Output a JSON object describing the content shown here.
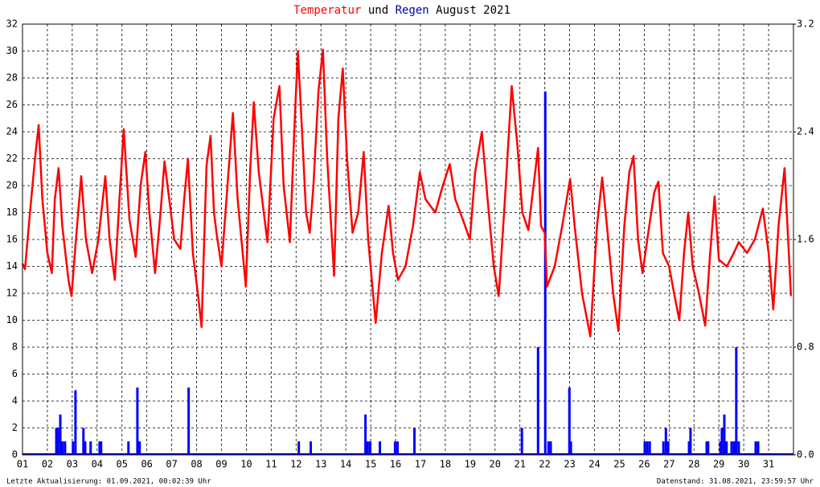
{
  "chart_data": {
    "type": "line",
    "title": "August 2021",
    "title_join": "und",
    "footer_left": "Letzte Aktualisierung: 01.09.2021, 00:02:39 Uhr",
    "footer_right": "Datenstand: 31.08.2021, 23:59:57 Uhr",
    "grid": true,
    "xlim": [
      1,
      32
    ],
    "xticks": [
      {
        "value": 1,
        "label": "01"
      },
      {
        "value": 2,
        "label": "02"
      },
      {
        "value": 3,
        "label": "03"
      },
      {
        "value": 4,
        "label": "04"
      },
      {
        "value": 5,
        "label": "05"
      },
      {
        "value": 6,
        "label": "06"
      },
      {
        "value": 7,
        "label": "07"
      },
      {
        "value": 8,
        "label": "08"
      },
      {
        "value": 9,
        "label": "09"
      },
      10,
      11,
      12,
      13,
      14,
      15,
      16,
      17,
      18,
      19,
      20,
      21,
      22,
      23,
      24,
      25,
      26,
      27,
      28,
      29,
      30,
      31
    ],
    "ylim": [
      0,
      32
    ],
    "yticks": [
      0,
      2,
      4,
      6,
      8,
      10,
      12,
      14,
      16,
      18,
      20,
      22,
      24,
      26,
      28,
      30,
      32
    ],
    "y2lim": [
      0,
      3.2
    ],
    "y2ticks": [
      {
        "value": 0,
        "label": "0.0"
      },
      0.8,
      1.6,
      2.4,
      3.2
    ],
    "series": [
      {
        "name": "Temperatur",
        "color": "#ff0000",
        "type": "line",
        "x": [
          1.0,
          1.1,
          1.3,
          1.5,
          1.65,
          1.8,
          2.0,
          2.18,
          2.3,
          2.45,
          2.6,
          2.85,
          2.97,
          3.15,
          3.36,
          3.55,
          3.8,
          4.05,
          4.33,
          4.5,
          4.71,
          4.9,
          5.07,
          5.3,
          5.55,
          5.75,
          5.94,
          6.1,
          6.33,
          6.55,
          6.71,
          6.9,
          7.1,
          7.35,
          7.5,
          7.65,
          7.85,
          8.05,
          8.2,
          8.4,
          8.56,
          8.7,
          8.8,
          9.0,
          9.2,
          9.46,
          9.65,
          9.98,
          10.15,
          10.3,
          10.5,
          10.85,
          11.1,
          11.33,
          11.5,
          11.75,
          11.95,
          12.07,
          12.2,
          12.4,
          12.55,
          12.7,
          12.9,
          13.08,
          13.25,
          13.53,
          13.7,
          13.88,
          14.05,
          14.27,
          14.5,
          14.72,
          14.9,
          15.2,
          15.45,
          15.72,
          15.9,
          16.1,
          16.4,
          16.7,
          16.98,
          17.2,
          17.6,
          17.9,
          18.18,
          18.4,
          18.7,
          18.99,
          19.2,
          19.47,
          19.7,
          19.95,
          20.15,
          20.4,
          20.67,
          20.9,
          21.1,
          21.34,
          21.55,
          21.73,
          21.85,
          22.0,
          22.09,
          22.4,
          22.7,
          23.02,
          23.2,
          23.5,
          23.83,
          24.1,
          24.31,
          24.5,
          24.75,
          24.96,
          25.2,
          25.4,
          25.57,
          25.75,
          25.93,
          26.2,
          26.4,
          26.57,
          26.75,
          27.0,
          27.2,
          27.41,
          27.6,
          27.77,
          27.95,
          28.2,
          28.45,
          28.65,
          28.83,
          29.0,
          29.32,
          29.6,
          29.8,
          30.13,
          30.45,
          30.77,
          31.0,
          31.19,
          31.4,
          31.64,
          31.9
        ],
        "values": [
          14.2,
          13.8,
          18,
          22,
          24.5,
          19,
          15,
          13.5,
          19,
          21.3,
          17,
          13,
          11.8,
          16,
          20.7,
          16,
          13.5,
          16,
          20.7,
          16,
          13,
          19,
          24.2,
          17.5,
          14.7,
          20,
          22.5,
          18,
          13.5,
          18,
          21.8,
          19,
          16,
          15.3,
          19,
          22,
          15,
          12,
          9.5,
          21.5,
          23.7,
          18,
          16.5,
          14,
          19,
          25.4,
          19,
          12.5,
          21,
          26.2,
          21,
          15.8,
          25,
          27.4,
          20,
          15.8,
          25,
          30,
          25.5,
          18,
          16.5,
          20,
          27,
          30.1,
          22,
          13.3,
          25,
          28.7,
          22,
          16.5,
          18,
          22.5,
          16,
          9.8,
          15,
          18.5,
          15,
          13,
          14,
          17,
          21,
          19,
          18,
          20,
          21.6,
          19,
          17.5,
          16,
          21,
          24,
          19,
          14,
          11.8,
          19,
          27.4,
          23,
          18,
          16.7,
          20,
          22.8,
          17,
          16.5,
          12.5,
          14,
          17,
          20.5,
          17,
          12,
          8.8,
          17,
          20.6,
          17,
          12,
          9.2,
          17,
          21,
          22.2,
          16,
          13.5,
          17,
          19.5,
          20.3,
          15,
          14,
          12,
          10,
          15,
          18,
          14,
          12,
          9.6,
          15,
          19.2,
          14.5,
          14,
          15,
          15.8,
          15,
          16,
          18.3,
          15,
          10.8,
          17,
          21.3,
          11.8
        ]
      },
      {
        "name": "Regen",
        "color": "#0000ff",
        "type": "bar",
        "axis": "y2",
        "x": [
          2.36,
          2.42,
          2.52,
          2.61,
          2.71,
          3.03,
          3.13,
          3.45,
          3.52,
          3.74,
          4.1,
          4.16,
          5.26,
          5.62,
          5.71,
          7.68,
          12.11,
          12.59,
          14.79,
          14.88,
          14.98,
          15.37,
          15.98,
          16.08,
          16.76,
          21.08,
          21.73,
          22.02,
          22.15,
          22.24,
          22.99,
          23.05,
          26.02,
          26.12,
          26.22,
          26.77,
          26.87,
          26.96,
          27.8,
          27.86,
          28.51,
          28.57,
          29.06,
          29.12,
          29.22,
          29.31,
          29.51,
          29.61,
          29.7,
          29.8,
          30.48,
          30.58
        ],
        "values": [
          0.2,
          0.2,
          0.3,
          0.1,
          0.1,
          0.1,
          0.48,
          0.2,
          0.1,
          0.1,
          0.1,
          0.1,
          0.1,
          0.5,
          0.1,
          0.5,
          0.1,
          0.1,
          0.3,
          0.1,
          0.1,
          0.1,
          0.1,
          0.1,
          0.2,
          0.2,
          0.8,
          2.7,
          0.1,
          0.1,
          0.5,
          0.1,
          0.1,
          0.1,
          0.1,
          0.1,
          0.2,
          0.1,
          0.1,
          0.2,
          0.1,
          0.1,
          0.1,
          0.2,
          0.3,
          0.1,
          0.1,
          0.1,
          0.8,
          0.1,
          0.1,
          0.1
        ]
      }
    ]
  }
}
